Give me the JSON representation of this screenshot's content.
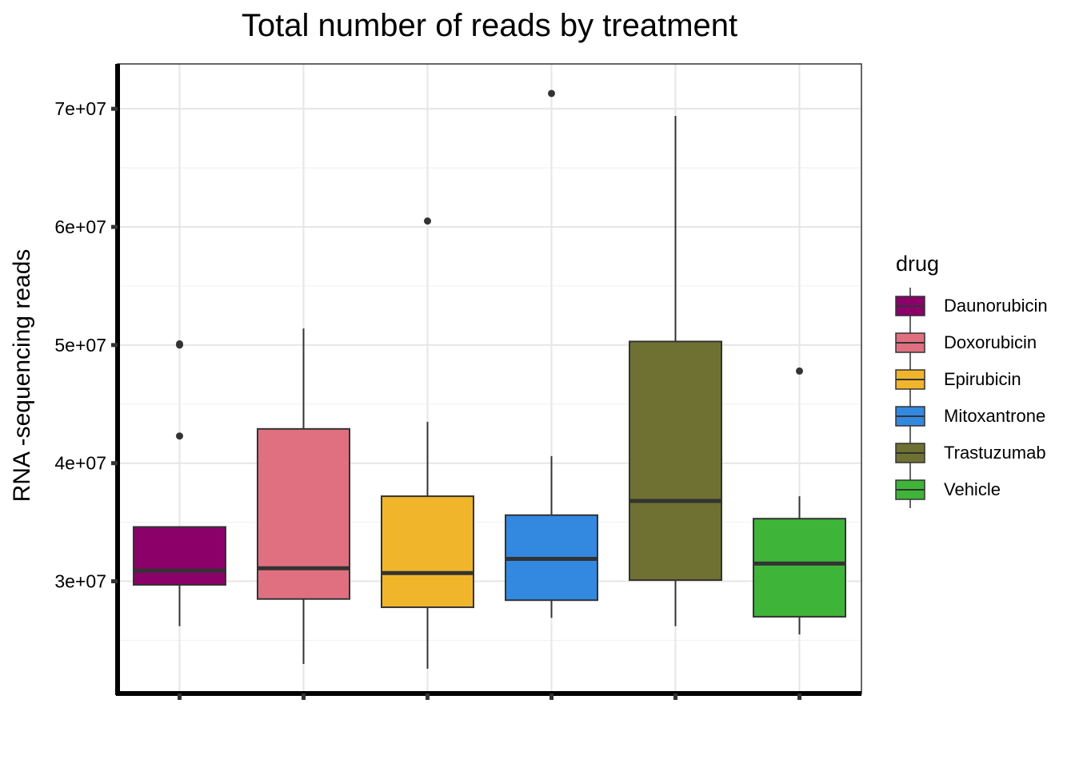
{
  "chart_data": {
    "type": "box",
    "title": "Total number of reads by treatment",
    "xlabel": "",
    "ylabel": "RNA -sequencing reads",
    "ylim": [
      20500000,
      73800000
    ],
    "yticks": [
      30000000,
      40000000,
      50000000,
      60000000,
      70000000
    ],
    "ytick_labels": [
      "3e+07",
      "4e+07",
      "5e+07",
      "6e+07",
      "7e+07"
    ],
    "grid": true,
    "legend": {
      "title": "drug",
      "position": "right"
    },
    "series": [
      {
        "name": "Daunorubicin",
        "color": "#8B0069",
        "min": 26200000,
        "q1": 29700000,
        "median": 30900000,
        "q3": 34600000,
        "max": 34600000,
        "outliers": [
          50000000,
          50100000,
          42300000
        ]
      },
      {
        "name": "Doxorubicin",
        "color": "#E07080",
        "min": 23000000,
        "q1": 28500000,
        "median": 31100000,
        "q3": 42900000,
        "max": 51400000,
        "outliers": []
      },
      {
        "name": "Epirubicin",
        "color": "#F0B52A",
        "min": 22600000,
        "q1": 27800000,
        "median": 30700000,
        "q3": 37200000,
        "max": 43500000,
        "outliers": [
          60500000
        ]
      },
      {
        "name": "Mitoxantrone",
        "color": "#3388E0",
        "min": 26900000,
        "q1": 28400000,
        "median": 31900000,
        "q3": 35600000,
        "max": 40600000,
        "outliers": [
          71300000
        ]
      },
      {
        "name": "Trastuzumab",
        "color": "#6E7132",
        "min": 26200000,
        "q1": 30100000,
        "median": 36800000,
        "q3": 50300000,
        "max": 69400000,
        "outliers": []
      },
      {
        "name": "Vehicle",
        "color": "#3EB538",
        "min": 25500000,
        "q1": 27000000,
        "median": 31500000,
        "q3": 35300000,
        "max": 37200000,
        "outliers": [
          47800000
        ]
      }
    ]
  }
}
